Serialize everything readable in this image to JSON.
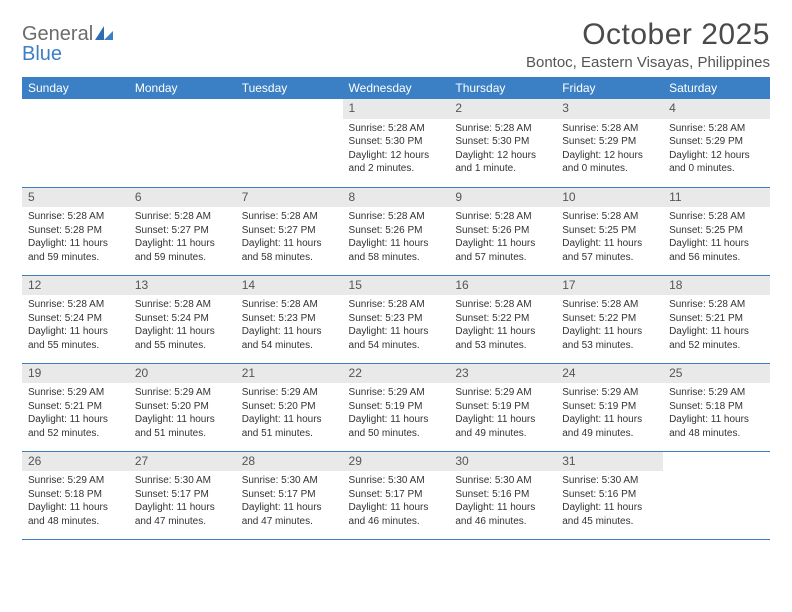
{
  "brand": {
    "word1": "General",
    "word2": "Blue"
  },
  "title": "October 2025",
  "location": "Bontoc, Eastern Visayas, Philippines",
  "colors": {
    "header_bg": "#3b7fc4",
    "header_text": "#ffffff",
    "daynum_bg": "#e9e9e9",
    "row_divider": "#3b7fc4",
    "page_bg": "#ffffff",
    "text": "#333333",
    "brand_gray": "#6b6b6b",
    "brand_blue": "#3b7fc4"
  },
  "typography": {
    "title_fontsize": 30,
    "location_fontsize": 15,
    "dayheader_fontsize": 12,
    "daynum_fontsize": 12,
    "body_fontsize": 10
  },
  "day_headers": [
    "Sunday",
    "Monday",
    "Tuesday",
    "Wednesday",
    "Thursday",
    "Friday",
    "Saturday"
  ],
  "weeks": [
    [
      {
        "n": "",
        "sr": "",
        "ss": "",
        "dl": ""
      },
      {
        "n": "",
        "sr": "",
        "ss": "",
        "dl": ""
      },
      {
        "n": "",
        "sr": "",
        "ss": "",
        "dl": ""
      },
      {
        "n": "1",
        "sr": "Sunrise: 5:28 AM",
        "ss": "Sunset: 5:30 PM",
        "dl": "Daylight: 12 hours and 2 minutes."
      },
      {
        "n": "2",
        "sr": "Sunrise: 5:28 AM",
        "ss": "Sunset: 5:30 PM",
        "dl": "Daylight: 12 hours and 1 minute."
      },
      {
        "n": "3",
        "sr": "Sunrise: 5:28 AM",
        "ss": "Sunset: 5:29 PM",
        "dl": "Daylight: 12 hours and 0 minutes."
      },
      {
        "n": "4",
        "sr": "Sunrise: 5:28 AM",
        "ss": "Sunset: 5:29 PM",
        "dl": "Daylight: 12 hours and 0 minutes."
      }
    ],
    [
      {
        "n": "5",
        "sr": "Sunrise: 5:28 AM",
        "ss": "Sunset: 5:28 PM",
        "dl": "Daylight: 11 hours and 59 minutes."
      },
      {
        "n": "6",
        "sr": "Sunrise: 5:28 AM",
        "ss": "Sunset: 5:27 PM",
        "dl": "Daylight: 11 hours and 59 minutes."
      },
      {
        "n": "7",
        "sr": "Sunrise: 5:28 AM",
        "ss": "Sunset: 5:27 PM",
        "dl": "Daylight: 11 hours and 58 minutes."
      },
      {
        "n": "8",
        "sr": "Sunrise: 5:28 AM",
        "ss": "Sunset: 5:26 PM",
        "dl": "Daylight: 11 hours and 58 minutes."
      },
      {
        "n": "9",
        "sr": "Sunrise: 5:28 AM",
        "ss": "Sunset: 5:26 PM",
        "dl": "Daylight: 11 hours and 57 minutes."
      },
      {
        "n": "10",
        "sr": "Sunrise: 5:28 AM",
        "ss": "Sunset: 5:25 PM",
        "dl": "Daylight: 11 hours and 57 minutes."
      },
      {
        "n": "11",
        "sr": "Sunrise: 5:28 AM",
        "ss": "Sunset: 5:25 PM",
        "dl": "Daylight: 11 hours and 56 minutes."
      }
    ],
    [
      {
        "n": "12",
        "sr": "Sunrise: 5:28 AM",
        "ss": "Sunset: 5:24 PM",
        "dl": "Daylight: 11 hours and 55 minutes."
      },
      {
        "n": "13",
        "sr": "Sunrise: 5:28 AM",
        "ss": "Sunset: 5:24 PM",
        "dl": "Daylight: 11 hours and 55 minutes."
      },
      {
        "n": "14",
        "sr": "Sunrise: 5:28 AM",
        "ss": "Sunset: 5:23 PM",
        "dl": "Daylight: 11 hours and 54 minutes."
      },
      {
        "n": "15",
        "sr": "Sunrise: 5:28 AM",
        "ss": "Sunset: 5:23 PM",
        "dl": "Daylight: 11 hours and 54 minutes."
      },
      {
        "n": "16",
        "sr": "Sunrise: 5:28 AM",
        "ss": "Sunset: 5:22 PM",
        "dl": "Daylight: 11 hours and 53 minutes."
      },
      {
        "n": "17",
        "sr": "Sunrise: 5:28 AM",
        "ss": "Sunset: 5:22 PM",
        "dl": "Daylight: 11 hours and 53 minutes."
      },
      {
        "n": "18",
        "sr": "Sunrise: 5:28 AM",
        "ss": "Sunset: 5:21 PM",
        "dl": "Daylight: 11 hours and 52 minutes."
      }
    ],
    [
      {
        "n": "19",
        "sr": "Sunrise: 5:29 AM",
        "ss": "Sunset: 5:21 PM",
        "dl": "Daylight: 11 hours and 52 minutes."
      },
      {
        "n": "20",
        "sr": "Sunrise: 5:29 AM",
        "ss": "Sunset: 5:20 PM",
        "dl": "Daylight: 11 hours and 51 minutes."
      },
      {
        "n": "21",
        "sr": "Sunrise: 5:29 AM",
        "ss": "Sunset: 5:20 PM",
        "dl": "Daylight: 11 hours and 51 minutes."
      },
      {
        "n": "22",
        "sr": "Sunrise: 5:29 AM",
        "ss": "Sunset: 5:19 PM",
        "dl": "Daylight: 11 hours and 50 minutes."
      },
      {
        "n": "23",
        "sr": "Sunrise: 5:29 AM",
        "ss": "Sunset: 5:19 PM",
        "dl": "Daylight: 11 hours and 49 minutes."
      },
      {
        "n": "24",
        "sr": "Sunrise: 5:29 AM",
        "ss": "Sunset: 5:19 PM",
        "dl": "Daylight: 11 hours and 49 minutes."
      },
      {
        "n": "25",
        "sr": "Sunrise: 5:29 AM",
        "ss": "Sunset: 5:18 PM",
        "dl": "Daylight: 11 hours and 48 minutes."
      }
    ],
    [
      {
        "n": "26",
        "sr": "Sunrise: 5:29 AM",
        "ss": "Sunset: 5:18 PM",
        "dl": "Daylight: 11 hours and 48 minutes."
      },
      {
        "n": "27",
        "sr": "Sunrise: 5:30 AM",
        "ss": "Sunset: 5:17 PM",
        "dl": "Daylight: 11 hours and 47 minutes."
      },
      {
        "n": "28",
        "sr": "Sunrise: 5:30 AM",
        "ss": "Sunset: 5:17 PM",
        "dl": "Daylight: 11 hours and 47 minutes."
      },
      {
        "n": "29",
        "sr": "Sunrise: 5:30 AM",
        "ss": "Sunset: 5:17 PM",
        "dl": "Daylight: 11 hours and 46 minutes."
      },
      {
        "n": "30",
        "sr": "Sunrise: 5:30 AM",
        "ss": "Sunset: 5:16 PM",
        "dl": "Daylight: 11 hours and 46 minutes."
      },
      {
        "n": "31",
        "sr": "Sunrise: 5:30 AM",
        "ss": "Sunset: 5:16 PM",
        "dl": "Daylight: 11 hours and 45 minutes."
      },
      {
        "n": "",
        "sr": "",
        "ss": "",
        "dl": ""
      }
    ]
  ]
}
